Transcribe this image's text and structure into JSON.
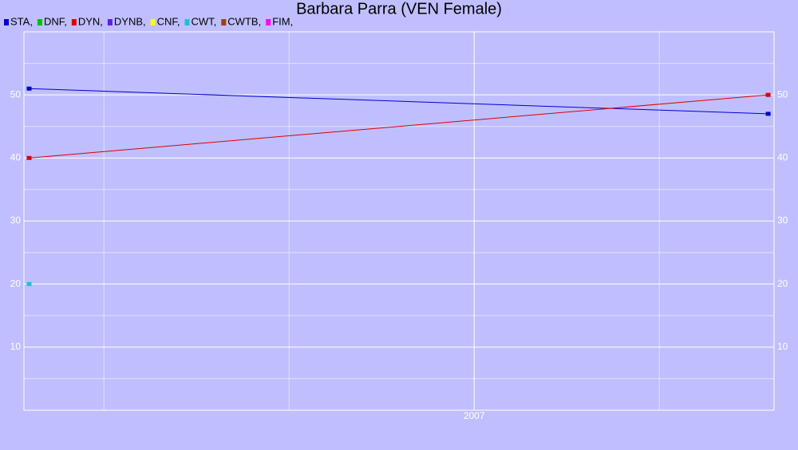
{
  "chart_data": {
    "type": "line",
    "title": "Barbara Parra (VEN Female)",
    "x": [
      2006.399,
      2007.397
    ],
    "xlim": [
      2006.392,
      2007.405
    ],
    "xticks": [
      2007
    ],
    "xminor": [
      2006.5,
      2006.75,
      2007.25
    ],
    "ylim": [
      0,
      60
    ],
    "yticks": [
      10,
      20,
      30,
      40,
      50
    ],
    "yminor": [
      5,
      15,
      25,
      35,
      45,
      55
    ],
    "grid": true,
    "series": [
      {
        "name": "STA,",
        "color": "#0000cc",
        "values": [
          51,
          47
        ]
      },
      {
        "name": "DNF,",
        "color": "#00c000",
        "values": [
          null,
          null
        ]
      },
      {
        "name": "DYN,",
        "color": "#dd0000",
        "values": [
          40,
          50
        ]
      },
      {
        "name": "DYNB,",
        "color": "#6020e0",
        "values": [
          null,
          null
        ]
      },
      {
        "name": "CNF,",
        "color": "#ffff00",
        "values": [
          null,
          null
        ]
      },
      {
        "name": "CWT,",
        "color": "#20c0d0",
        "values": [
          20,
          null
        ]
      },
      {
        "name": "CWTB,",
        "color": "#a04000",
        "values": [
          null,
          null
        ]
      },
      {
        "name": "FIM,",
        "color": "#ff00ff",
        "values": [
          null,
          null
        ]
      }
    ]
  }
}
